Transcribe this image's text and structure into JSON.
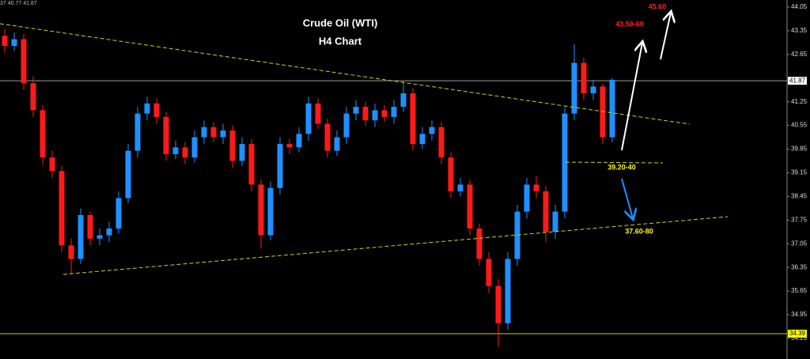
{
  "chart_data": {
    "type": "candlestick",
    "title": "Crude Oil (WTI)",
    "subtitle": "H4 Chart",
    "header": "37 40.77 41.87",
    "up_color": "#1e90ff",
    "down_color": "#ff1a1a",
    "ylim": [
      33.64,
      44.26
    ],
    "yticks": [
      44.05,
      43.35,
      42.65,
      41.25,
      40.55,
      39.85,
      39.15,
      38.45,
      37.75,
      37.05,
      36.35,
      35.65,
      34.95,
      34.25
    ],
    "levels": [
      {
        "value": 41.87,
        "color": "#9a9a9a",
        "label_color": "#ffffff"
      },
      {
        "value": 34.39,
        "color": "#d4d400",
        "label_color": "#ffff00"
      }
    ],
    "annotations": [
      {
        "text": "45.60",
        "color": "#ff2020"
      },
      {
        "text": "43.50-60",
        "color": "#ff2020"
      },
      {
        "text": "39.20-40",
        "color": "#ffff00"
      },
      {
        "text": "37.60-80",
        "color": "#ffff00"
      }
    ],
    "series": {
      "open": [
        43.2,
        42.9,
        43.1,
        41.8,
        41.0,
        39.6,
        39.2,
        37.0,
        36.6,
        37.9,
        37.2,
        37.3,
        37.5,
        38.4,
        39.8,
        40.9,
        41.2,
        40.8,
        39.7,
        39.9,
        39.6,
        40.2,
        40.5,
        40.2,
        40.4,
        39.5,
        40.0,
        38.8,
        37.3,
        38.7,
        40.0,
        39.9,
        40.3,
        41.2,
        40.6,
        39.8,
        40.2,
        40.9,
        41.1,
        40.7,
        41.0,
        40.8,
        41.1,
        41.5,
        40.0,
        40.3,
        40.5,
        39.6,
        38.6,
        38.8,
        37.5,
        36.6,
        35.8,
        34.7,
        36.6,
        38.0,
        38.8,
        38.6,
        37.4,
        38.0,
        40.9,
        42.4,
        41.5,
        41.7,
        40.2
      ],
      "high": [
        43.4,
        43.3,
        43.25,
        42.0,
        41.15,
        39.8,
        39.35,
        37.2,
        38.1,
        38.0,
        37.5,
        37.7,
        38.6,
        40.0,
        41.1,
        41.4,
        41.35,
        40.95,
        40.1,
        40.05,
        40.4,
        40.7,
        40.65,
        40.6,
        40.55,
        40.2,
        40.15,
        38.95,
        38.9,
        40.2,
        40.15,
        40.5,
        41.4,
        41.35,
        40.75,
        40.4,
        41.1,
        41.3,
        41.25,
        41.2,
        41.15,
        41.3,
        41.85,
        41.65,
        40.5,
        40.7,
        40.65,
        39.75,
        39.0,
        38.95,
        37.65,
        36.8,
        36.0,
        36.8,
        38.2,
        39.0,
        39.05,
        38.75,
        38.2,
        41.1,
        42.95,
        42.55,
        41.9,
        41.8,
        41.95
      ],
      "low": [
        42.7,
        42.75,
        41.6,
        40.8,
        39.4,
        39.0,
        36.8,
        36.15,
        36.45,
        37.0,
        37.0,
        37.1,
        37.35,
        38.25,
        39.6,
        40.7,
        40.6,
        39.5,
        39.55,
        39.4,
        39.45,
        40.0,
        40.05,
        40.0,
        39.3,
        39.35,
        38.6,
        36.9,
        37.15,
        38.5,
        39.7,
        39.75,
        40.1,
        40.45,
        39.6,
        39.65,
        40.0,
        40.7,
        40.55,
        40.5,
        40.65,
        40.6,
        40.95,
        39.8,
        39.85,
        40.1,
        39.4,
        38.4,
        38.45,
        37.3,
        36.4,
        35.6,
        34.0,
        34.5,
        36.4,
        37.8,
        38.4,
        37.1,
        37.2,
        37.8,
        40.7,
        41.3,
        41.3,
        40.0,
        40.05
      ],
      "close": [
        42.9,
        43.1,
        41.8,
        41.0,
        39.6,
        39.2,
        37.0,
        36.6,
        37.9,
        37.2,
        37.3,
        37.5,
        38.4,
        39.8,
        40.9,
        41.2,
        40.8,
        39.7,
        39.9,
        39.6,
        40.2,
        40.5,
        40.2,
        40.4,
        39.5,
        40.0,
        38.8,
        37.3,
        38.7,
        40.0,
        39.9,
        40.3,
        41.2,
        40.6,
        39.8,
        40.2,
        40.9,
        41.1,
        40.7,
        41.0,
        40.8,
        41.1,
        41.5,
        40.0,
        40.3,
        40.5,
        39.6,
        38.6,
        38.8,
        37.5,
        36.6,
        35.8,
        34.7,
        36.6,
        38.0,
        38.8,
        38.6,
        37.4,
        38.0,
        40.9,
        42.4,
        41.5,
        41.7,
        40.2,
        41.9
      ]
    }
  }
}
